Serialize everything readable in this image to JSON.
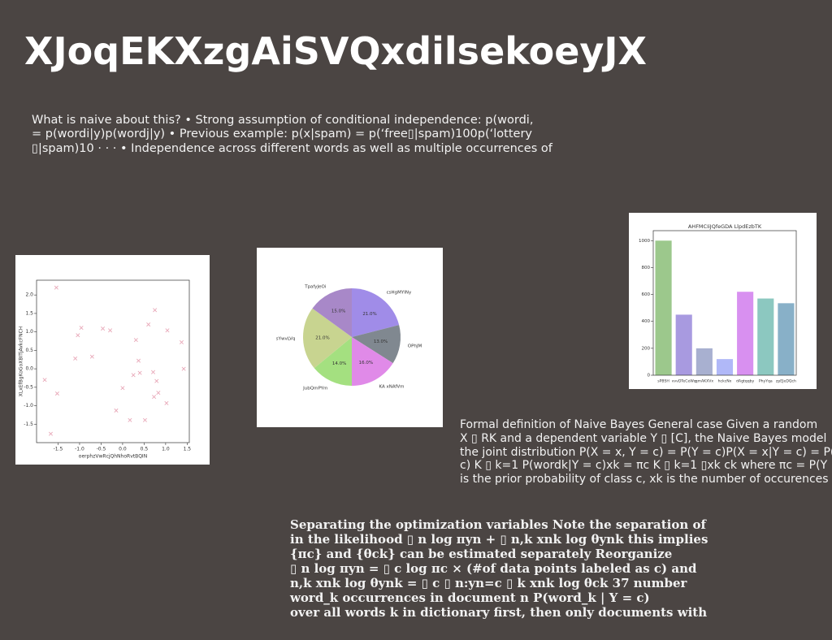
{
  "title": "XJoqEKXzgAiSVQxdilsekoeyJX",
  "paragraphs": [
    [
      "What is naive about this? • Strong assumption of conditional independence: p(wordi,",
      "= p(wordi|y)p(wordj|y) • Previous example: p(x|spam) = p(‘free▯|spam)100p(‘lottery",
      "▯|spam)10 · · · • Independence across different words as well as multiple occurrences of"
    ],
    [
      "Formal definition of Naive Bayes General case Given a random",
      "X ▯ RK and a dependent variable Y ▯ [C], the Naive Bayes model",
      "the joint distribution P(X = x, Y = c) = P(Y = c)P(X = x|Y = c) = P(Y",
      "c) K ▯ k=1 P(wordk|Y = c)xk = πc K ▯ k=1 ▯xk ck where πc = P(Y =",
      "is the prior probability of class c, xk is the number of occurences"
    ],
    [
      "Separating the optimization variables Note the separation of",
      "in the likelihood ▯ n log πyn + ▯ n,k xnk log θynk this implies",
      "{πc} and {θck} can be estimated separately Reorganize",
      "▯ n log πyn = ▯ c log πc × (#of data points labeled as c) and",
      "n,k xnk log θynk = ▯ c ▯ n:yn=c ▯ k xnk log θck 37 number",
      "word_k occurrences in document n P(word_k | Y = c)",
      "over all words k in dictionary first, then only documents with"
    ]
  ],
  "chart_data": [
    {
      "type": "scatter",
      "xlabel": "oerphzVwRcjQhNhoRvtBQIN",
      "ylabel": "XLxEfBgKoGoXBITjAvkcFNCH",
      "color": "#e8a8b8",
      "x": [
        -1.54,
        -0.96,
        -1.04,
        -1.1,
        -0.71,
        -0.46,
        -0.29,
        -1.81,
        -1.52,
        -1.67,
        -0.15,
        0.0,
        0.17,
        0.25,
        0.31,
        0.37,
        0.4,
        0.52,
        0.6,
        0.75,
        0.71,
        0.79,
        0.83,
        0.73,
        1.04,
        1.02,
        1.37,
        1.42
      ],
      "values": [
        2.2,
        1.11,
        0.91,
        0.28,
        0.33,
        1.09,
        1.04,
        -0.3,
        -0.67,
        -1.76,
        -1.13,
        -0.52,
        -1.39,
        -0.17,
        0.78,
        0.22,
        -0.11,
        -1.39,
        1.2,
        1.59,
        -0.09,
        -0.33,
        -0.65,
        -0.76,
        1.04,
        -0.93,
        0.72,
        0.0
      ],
      "xlim": [
        -2.0,
        1.55
      ],
      "xticks": [
        -1.5,
        {
          "value": -1,
          "label": "-1.0"
        },
        -0.5,
        {
          "value": 0,
          "label": "0.0"
        },
        0.5,
        {
          "value": 1,
          "label": "1.0"
        },
        1.5
      ],
      "ylim": [
        -2.0,
        2.4
      ],
      "yticks": [
        -1.5,
        {
          "value": -1,
          "label": "-1.0"
        },
        -0.5,
        {
          "value": 0,
          "label": "0.0"
        },
        0.5,
        {
          "value": 1,
          "label": "1.0"
        },
        1.5,
        {
          "value": 2,
          "label": "2.0"
        }
      ]
    },
    {
      "type": "pie",
      "categories": [
        "csHgMYINy",
        "OPhJM",
        "KA xNAfVm",
        "JubQmPYm",
        "sYwvLVq",
        "TpafyJeOi"
      ],
      "values": [
        21.0,
        13.0,
        16.0,
        14.0,
        21.0,
        15.0
      ],
      "value_labels": [
        "21.0%",
        "13.0%",
        "16.0%",
        "14.0%",
        "21.0%",
        "15.0%"
      ],
      "colors": [
        "#a08ce8",
        "#808890",
        "#e08ae8",
        "#a4e080",
        "#c8d490",
        "#a888c8"
      ]
    },
    {
      "type": "bar",
      "title": "AHFMCIiJQfeGDA LlpdEzbTK",
      "categories": [
        "sPBSH",
        "vvvDTeCeWq",
        "qmAKXVx",
        "hckcNx",
        "dAgtqqby",
        "PhyYqa",
        "zpEJeDQch"
      ],
      "values": [
        1000,
        450,
        200,
        120,
        620,
        570,
        535
      ],
      "colors": [
        "#9cc88c",
        "#a89ae0",
        "#a8b0d0",
        "#b0b8f8",
        "#d890f0",
        "#8cc8c0",
        "#88b0c8"
      ],
      "ylim": [
        0,
        1050
      ],
      "yticks": [
        0,
        200,
        400,
        600,
        800,
        1000
      ]
    }
  ]
}
